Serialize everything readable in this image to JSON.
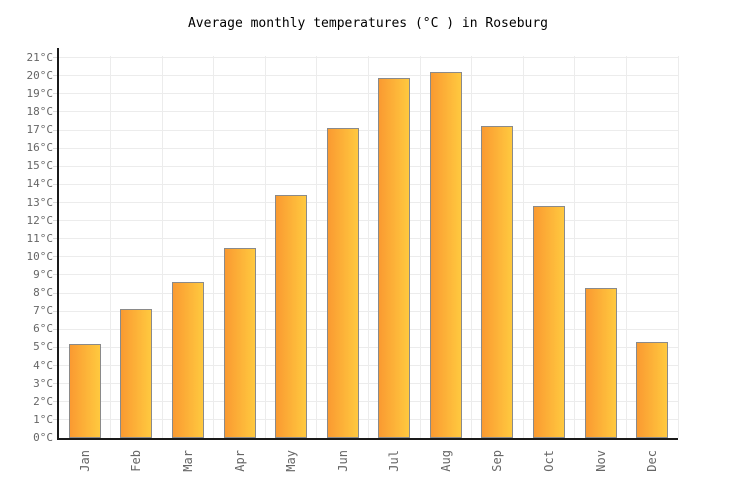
{
  "page_title": "Average monthly temperatures (°C ) in Roseburg",
  "chart_data": {
    "type": "bar",
    "title": "Average monthly temperatures (°C ) in Roseburg",
    "categories": [
      "Jan",
      "Feb",
      "Mar",
      "Apr",
      "May",
      "Jun",
      "Jul",
      "Aug",
      "Sep",
      "Oct",
      "Nov",
      "Dec"
    ],
    "values": [
      5.2,
      7.1,
      8.6,
      10.5,
      13.4,
      17.1,
      19.9,
      20.2,
      17.2,
      12.8,
      8.3,
      5.3
    ],
    "xlabel": "",
    "ylabel": "",
    "ylim": [
      0,
      21
    ],
    "ytick_step": 1,
    "ytick_suffix": "°C",
    "grid": true,
    "legend_position": "none",
    "styles": {
      "bar_gradient_left": "#FA9A31",
      "bar_gradient_right": "#FFC93F",
      "bar_border": "#8A8A8A",
      "axis": "#1A1A1A",
      "gridline": "#ECECEC",
      "tick": "#D9D9D9",
      "axis_label": "#666666",
      "title_text": "#000000",
      "background": "#FFFFFF"
    }
  }
}
